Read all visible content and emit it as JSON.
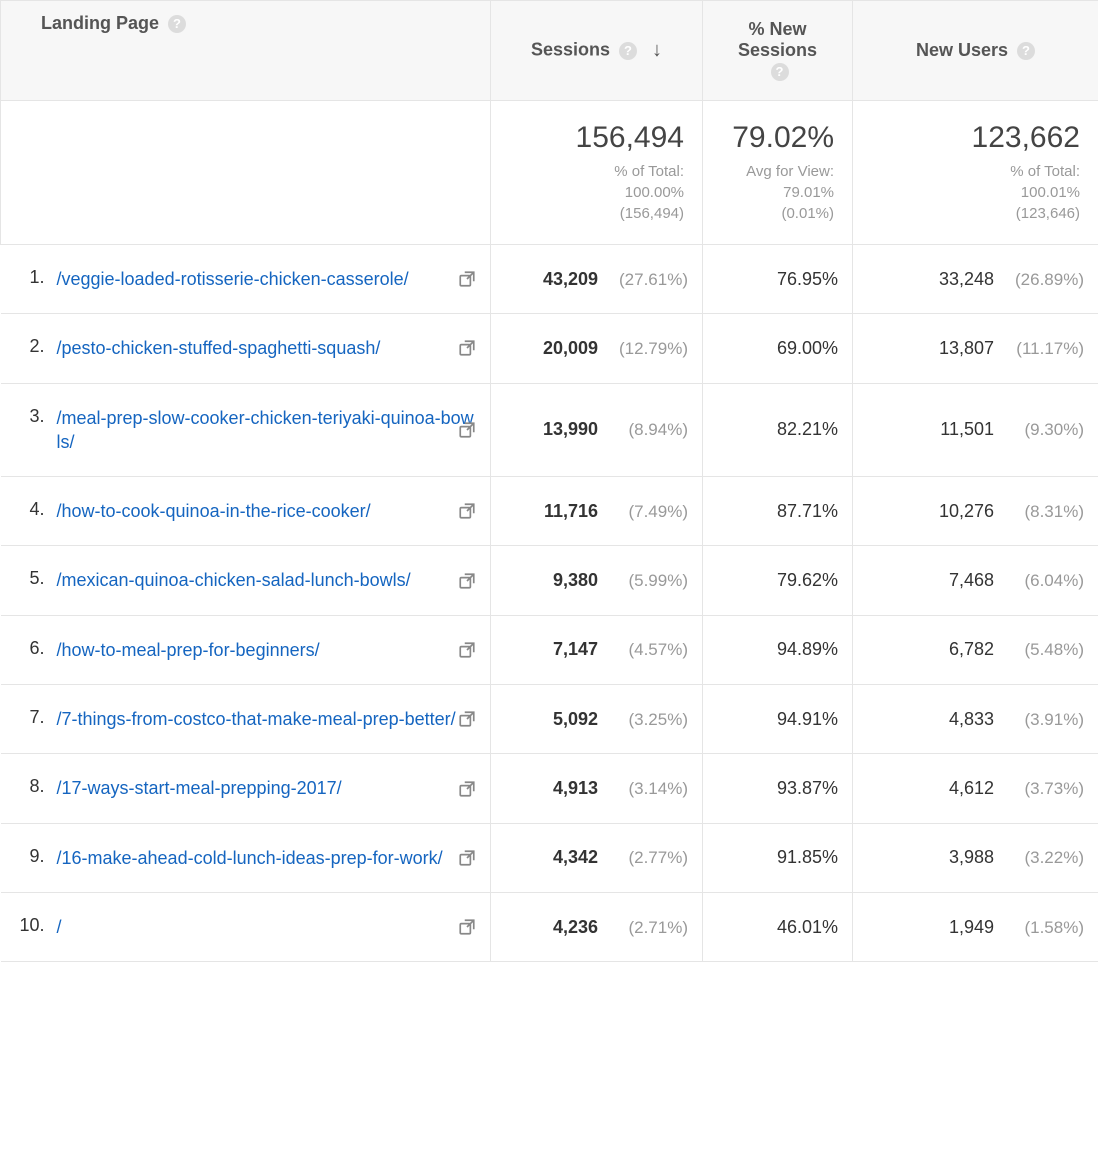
{
  "headers": {
    "landing_page": "Landing Page",
    "sessions": "Sessions",
    "pct_new_sessions": "% New Sessions",
    "new_users": "New Users"
  },
  "summary": {
    "sessions": {
      "value": "156,494",
      "sub_label": "% of Total:",
      "sub_pct": "100.00%",
      "sub_abs": "(156,494)"
    },
    "pct_new_sessions": {
      "value": "79.02%",
      "sub_label": "Avg for View:",
      "sub_pct": "79.01%",
      "sub_abs": "(0.01%)"
    },
    "new_users": {
      "value": "123,662",
      "sub_label": "% of Total:",
      "sub_pct": "100.01%",
      "sub_abs": "(123,646)"
    }
  },
  "rows": [
    {
      "idx": "1.",
      "page": "/veggie-loaded-rotisserie-chicken-casserole/",
      "sessions": "43,209",
      "sessions_pct": "(27.61%)",
      "pct_new": "76.95%",
      "new_users": "33,248",
      "new_users_pct": "(26.89%)"
    },
    {
      "idx": "2.",
      "page": "/pesto-chicken-stuffed-spaghetti-squash/",
      "sessions": "20,009",
      "sessions_pct": "(12.79%)",
      "pct_new": "69.00%",
      "new_users": "13,807",
      "new_users_pct": "(11.17%)"
    },
    {
      "idx": "3.",
      "page": "/meal-prep-slow-cooker-chicken-teriyaki-quinoa-bowls/",
      "sessions": "13,990",
      "sessions_pct": "(8.94%)",
      "pct_new": "82.21%",
      "new_users": "11,501",
      "new_users_pct": "(9.30%)"
    },
    {
      "idx": "4.",
      "page": "/how-to-cook-quinoa-in-the-rice-cooker/",
      "sessions": "11,716",
      "sessions_pct": "(7.49%)",
      "pct_new": "87.71%",
      "new_users": "10,276",
      "new_users_pct": "(8.31%)"
    },
    {
      "idx": "5.",
      "page": "/mexican-quinoa-chicken-salad-lunch-bowls/",
      "sessions": "9,380",
      "sessions_pct": "(5.99%)",
      "pct_new": "79.62%",
      "new_users": "7,468",
      "new_users_pct": "(6.04%)"
    },
    {
      "idx": "6.",
      "page": "/how-to-meal-prep-for-beginners/",
      "sessions": "7,147",
      "sessions_pct": "(4.57%)",
      "pct_new": "94.89%",
      "new_users": "6,782",
      "new_users_pct": "(5.48%)"
    },
    {
      "idx": "7.",
      "page": "/7-things-from-costco-that-make-meal-prep-better/",
      "sessions": "5,092",
      "sessions_pct": "(3.25%)",
      "pct_new": "94.91%",
      "new_users": "4,833",
      "new_users_pct": "(3.91%)"
    },
    {
      "idx": "8.",
      "page": "/17-ways-start-meal-prepping-2017/",
      "sessions": "4,913",
      "sessions_pct": "(3.14%)",
      "pct_new": "93.87%",
      "new_users": "4,612",
      "new_users_pct": "(3.73%)"
    },
    {
      "idx": "9.",
      "page": "/16-make-ahead-cold-lunch-ideas-prep-for-work/",
      "sessions": "4,342",
      "sessions_pct": "(2.77%)",
      "pct_new": "91.85%",
      "new_users": "3,988",
      "new_users_pct": "(3.22%)"
    },
    {
      "idx": "10.",
      "page": "/",
      "sessions": "4,236",
      "sessions_pct": "(2.71%)",
      "pct_new": "46.01%",
      "new_users": "1,949",
      "new_users_pct": "(1.58%)"
    }
  ],
  "colors": {
    "link": "#1565c0",
    "muted": "#999999",
    "border": "#e5e5e5",
    "header_bg": "#f7f7f7"
  }
}
